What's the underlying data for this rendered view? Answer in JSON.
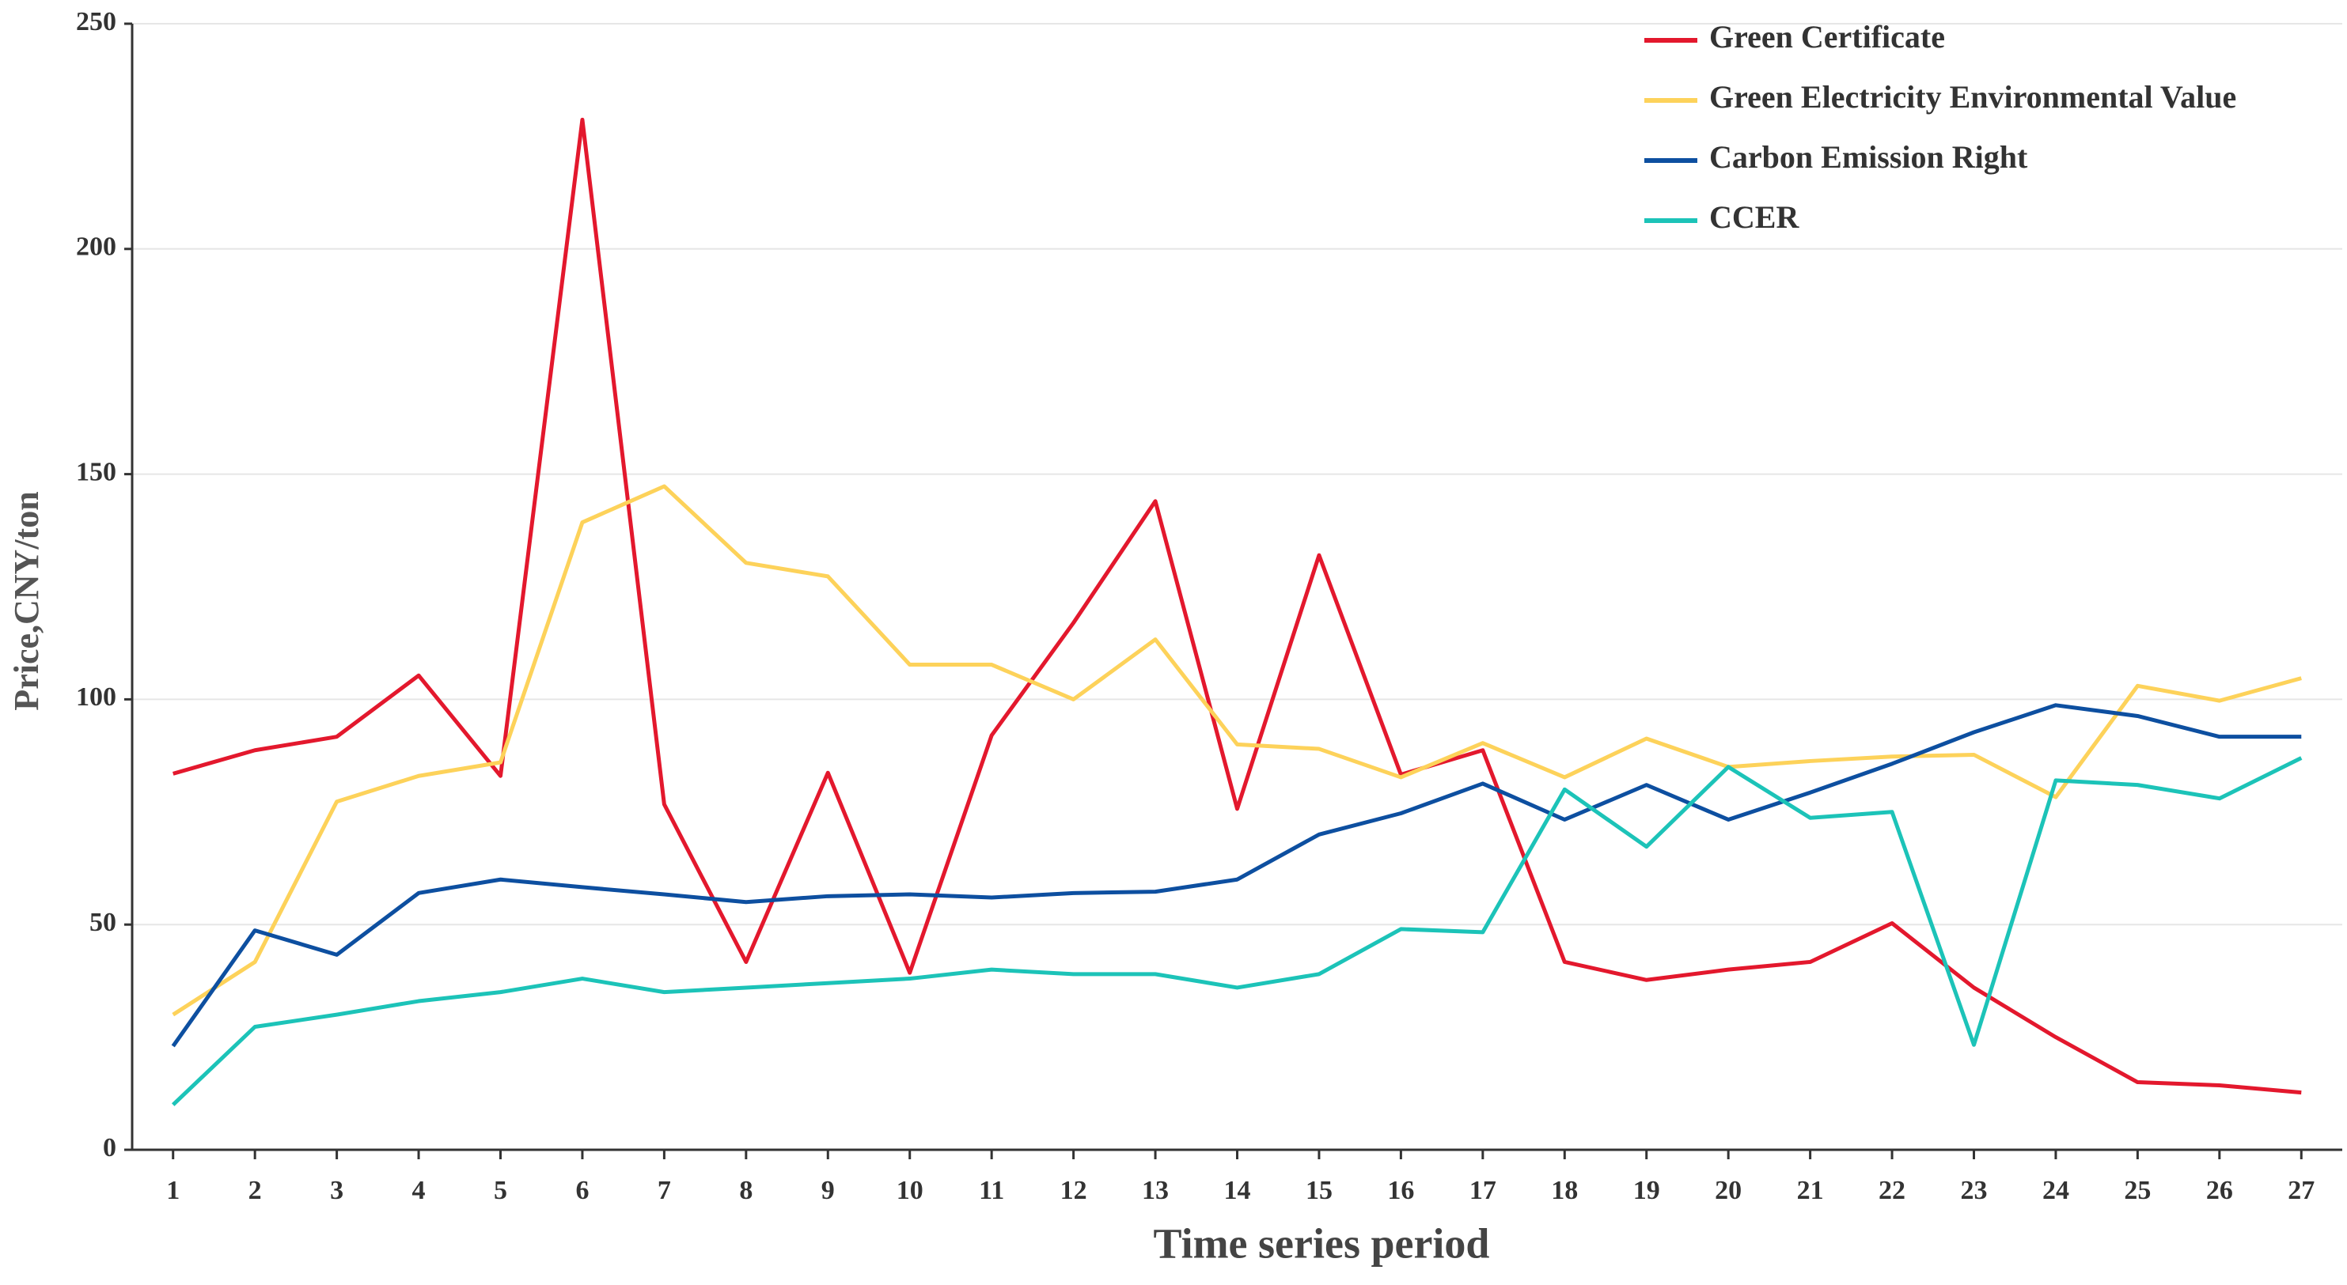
{
  "chart_data": {
    "type": "line",
    "x_label": "Time series period",
    "y_label": "Price,CNY/ton",
    "x": [
      1,
      2,
      3,
      4,
      5,
      6,
      7,
      8,
      9,
      10,
      11,
      12,
      13,
      14,
      15,
      16,
      17,
      18,
      19,
      20,
      21,
      22,
      23,
      24,
      25,
      26,
      27
    ],
    "xlim": [
      0.5,
      27.5
    ],
    "xticks": [
      1,
      2,
      3,
      4,
      5,
      6,
      7,
      8,
      9,
      10,
      11,
      12,
      13,
      14,
      15,
      16,
      17,
      18,
      19,
      20,
      21,
      22,
      23,
      24,
      25,
      26,
      27
    ],
    "ylim": [
      0,
      250
    ],
    "yticks": [
      0,
      50,
      100,
      150,
      200,
      250
    ],
    "grid": true,
    "legend": "top-right",
    "series": [
      {
        "name": "Green Certificate",
        "color": "#e3182d",
        "values": [
          83.5,
          88.7,
          91.7,
          105.3,
          83,
          228.7,
          76.7,
          41.7,
          83.7,
          39.3,
          92,
          117,
          144,
          75.7,
          132,
          83.3,
          88.7,
          41.7,
          37.7,
          40,
          41.7,
          50.3,
          36,
          25,
          15,
          14.3,
          12.7
        ]
      },
      {
        "name": "Green Electricity Environmental Value",
        "color": "#fdd25a",
        "values": [
          30,
          41.7,
          77.3,
          83,
          86,
          139.3,
          147.3,
          130.3,
          127.3,
          107.7,
          107.7,
          100,
          113.3,
          90,
          89,
          82.7,
          90.3,
          82.7,
          91.3,
          85,
          86.3,
          87.3,
          87.7,
          78.3,
          103,
          99.7,
          104.7
        ]
      },
      {
        "name": "Carbon Emission Right",
        "color": "#0d4fa0",
        "values": [
          23,
          48.7,
          43.3,
          57,
          60,
          58.3,
          56.7,
          55,
          56.3,
          56.7,
          56,
          57,
          57.3,
          60,
          70,
          74.7,
          81.3,
          73.3,
          81,
          73.3,
          79.3,
          85.7,
          92.7,
          98.7,
          96.3,
          91.7,
          91.7
        ]
      },
      {
        "name": "CCER",
        "color": "#1cc3b8",
        "values": [
          10,
          27.3,
          30,
          33,
          35,
          38,
          35,
          36,
          37,
          38,
          40,
          39,
          39,
          36,
          39,
          49,
          48.3,
          80,
          67.3,
          85,
          73.7,
          75,
          23.3,
          82,
          81,
          78,
          87
        ]
      }
    ]
  }
}
